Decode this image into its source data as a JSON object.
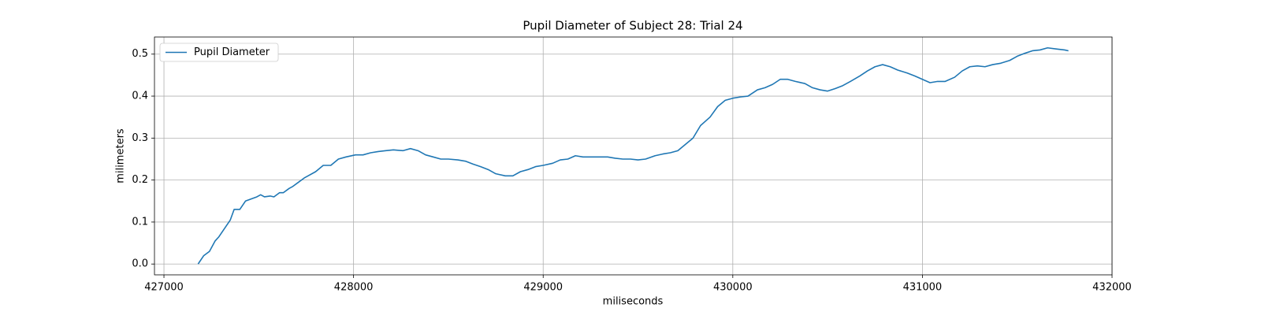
{
  "chart_data": {
    "type": "line",
    "title": "Pupil Diameter of Subject 28: Trial 24",
    "x_label": "miliseconds",
    "y_label": "milimeters",
    "x": [
      427180,
      427210,
      427240,
      427270,
      427290,
      427320,
      427350,
      427370,
      427400,
      427430,
      427460,
      427490,
      427510,
      427530,
      427560,
      427580,
      427610,
      427630,
      427660,
      427680,
      427710,
      427740,
      427760,
      427800,
      427840,
      427880,
      427920,
      427960,
      428010,
      428050,
      428090,
      428130,
      428170,
      428210,
      428260,
      428300,
      428340,
      428380,
      428420,
      428460,
      428500,
      428550,
      428590,
      428630,
      428670,
      428710,
      428750,
      428800,
      428840,
      428880,
      428920,
      428960,
      429000,
      429050,
      429090,
      429130,
      429170,
      429210,
      429250,
      429290,
      429340,
      429380,
      429420,
      429460,
      429500,
      429540,
      429590,
      429630,
      429670,
      429710,
      429750,
      429790,
      429830,
      429880,
      429920,
      429960,
      430000,
      430040,
      430080,
      430130,
      430170,
      430210,
      430250,
      430290,
      430330,
      430380,
      430420,
      430460,
      430500,
      430540,
      430580,
      430620,
      430670,
      430710,
      430750,
      430790,
      430830,
      430870,
      430920,
      430960,
      431000,
      431040,
      431080,
      431120,
      431170,
      431210,
      431250,
      431290,
      431330,
      431370,
      431410,
      431460,
      431500,
      431540,
      431580,
      431620,
      431660,
      431710,
      431750,
      431770
    ],
    "series": [
      {
        "name": "Pupil Diameter",
        "color": "#1f77b4",
        "values": [
          0.0,
          0.02,
          0.03,
          0.055,
          0.065,
          0.085,
          0.105,
          0.13,
          0.13,
          0.15,
          0.155,
          0.16,
          0.165,
          0.16,
          0.162,
          0.16,
          0.17,
          0.17,
          0.18,
          0.185,
          0.195,
          0.205,
          0.21,
          0.22,
          0.235,
          0.235,
          0.25,
          0.255,
          0.26,
          0.26,
          0.265,
          0.268,
          0.27,
          0.272,
          0.27,
          0.275,
          0.27,
          0.26,
          0.255,
          0.25,
          0.25,
          0.248,
          0.245,
          0.238,
          0.232,
          0.225,
          0.215,
          0.21,
          0.21,
          0.22,
          0.225,
          0.232,
          0.235,
          0.24,
          0.248,
          0.25,
          0.258,
          0.255,
          0.255,
          0.255,
          0.255,
          0.252,
          0.25,
          0.25,
          0.248,
          0.25,
          0.258,
          0.262,
          0.265,
          0.27,
          0.285,
          0.3,
          0.33,
          0.35,
          0.375,
          0.39,
          0.395,
          0.398,
          0.4,
          0.415,
          0.42,
          0.428,
          0.44,
          0.44,
          0.435,
          0.43,
          0.42,
          0.415,
          0.412,
          0.418,
          0.425,
          0.435,
          0.448,
          0.46,
          0.47,
          0.475,
          0.47,
          0.462,
          0.455,
          0.448,
          0.44,
          0.432,
          0.435,
          0.435,
          0.445,
          0.46,
          0.47,
          0.472,
          0.47,
          0.475,
          0.478,
          0.485,
          0.495,
          0.502,
          0.508,
          0.51,
          0.515,
          0.512,
          0.51,
          0.508
        ]
      }
    ],
    "xlim": [
      426950,
      432000
    ],
    "xticks": [
      427000,
      428000,
      429000,
      430000,
      431000,
      432000
    ],
    "ylim": [
      -0.0258,
      0.5408
    ],
    "yticks": [
      {
        "value": 0,
        "label": "0.0"
      },
      0.1,
      0.2,
      0.3,
      0.4,
      0.5
    ],
    "grid": true,
    "legend": "upper left"
  }
}
